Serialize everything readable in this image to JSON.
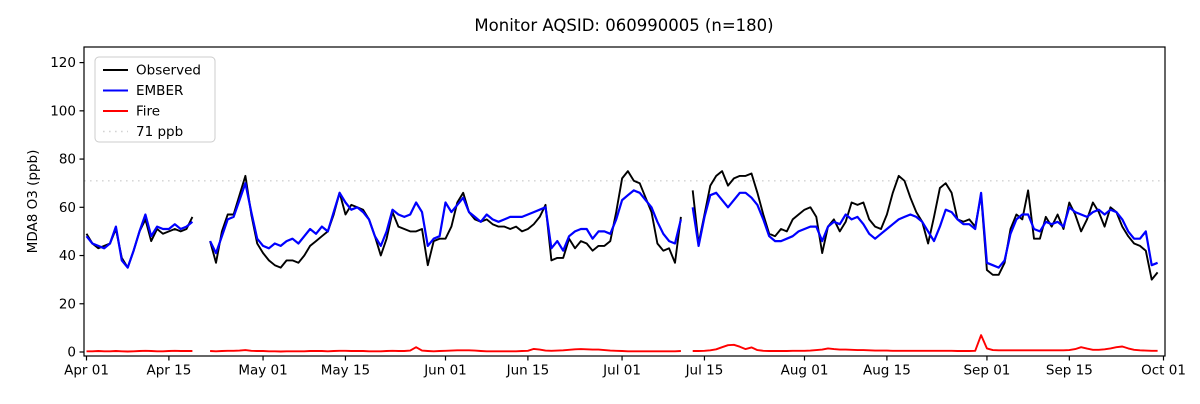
{
  "chart_data": {
    "type": "line",
    "title": "Monitor AQSID: 060990005 (n=180)",
    "xlabel": "",
    "ylabel": "MDA8 O3 (ppb)",
    "grid": false,
    "legend_position": "upper left",
    "ylim": [
      -2,
      126.5
    ],
    "yticks": [
      0,
      20,
      40,
      60,
      80,
      100,
      120
    ],
    "xticks": [
      {
        "label": "Apr 01",
        "day": 0
      },
      {
        "label": "Apr 15",
        "day": 14
      },
      {
        "label": "May 01",
        "day": 30
      },
      {
        "label": "May 15",
        "day": 44
      },
      {
        "label": "Jun 01",
        "day": 61
      },
      {
        "label": "Jun 15",
        "day": 75
      },
      {
        "label": "Jul 01",
        "day": 91
      },
      {
        "label": "Jul 15",
        "day": 105
      },
      {
        "label": "Aug 01",
        "day": 122
      },
      {
        "label": "Aug 15",
        "day": 136
      },
      {
        "label": "Sep 01",
        "day": 153
      },
      {
        "label": "Sep 15",
        "day": 167
      },
      {
        "label": "Oct 01",
        "day": 183
      }
    ],
    "n_days": 183,
    "date_range": "Apr 01 - Sep 30",
    "missing_days": [
      "Apr 20",
      "Apr 21",
      "Jul 12"
    ],
    "threshold": {
      "label": "71 ppb",
      "value": 71,
      "color": "#d3d3d3",
      "style": "dotted"
    },
    "legend_items": [
      {
        "label": "Observed",
        "color": "#000000",
        "dash": "solid"
      },
      {
        "label": "EMBER",
        "color": "#0000ff",
        "dash": "solid"
      },
      {
        "label": "Fire",
        "color": "#ff0000",
        "dash": "solid"
      },
      {
        "label": "71 ppb",
        "color": "#d3d3d3",
        "dash": "dotted"
      }
    ],
    "series": [
      {
        "name": "Observed",
        "color": "#000000",
        "width": 1.9,
        "values": [
          49,
          45,
          43,
          44,
          45,
          51,
          39,
          35,
          42,
          50,
          55,
          46,
          51,
          49,
          50,
          51,
          50,
          51,
          56,
          null,
          null,
          46,
          37,
          50,
          57,
          57,
          65,
          73,
          57,
          45,
          41,
          38,
          36,
          35,
          38,
          38,
          37,
          40,
          44,
          46,
          48,
          50,
          57,
          66,
          57,
          61,
          60,
          59,
          55,
          48,
          40,
          47,
          58,
          52,
          51,
          50,
          50,
          51,
          36,
          46,
          47,
          47,
          52,
          62,
          66,
          58,
          55,
          54,
          55,
          53,
          52,
          52,
          51,
          52,
          50,
          51,
          53,
          56,
          61,
          38,
          39,
          39,
          47,
          43,
          46,
          45,
          42,
          44,
          44,
          46,
          58,
          72,
          75,
          71,
          70,
          64,
          58,
          45,
          42,
          43,
          37,
          56,
          null,
          67,
          45,
          57,
          69,
          73,
          75,
          69,
          72,
          73,
          73,
          74,
          66,
          57,
          49,
          48,
          51,
          50,
          55,
          57,
          59,
          60,
          56,
          41,
          52,
          55,
          50,
          54,
          62,
          61,
          62,
          55,
          52,
          51,
          57,
          66,
          73,
          71,
          64,
          58,
          54,
          45,
          56,
          68,
          70,
          66,
          55,
          54,
          55,
          52,
          65,
          34,
          32,
          32,
          37,
          51,
          57,
          55,
          67,
          47,
          47,
          56,
          52,
          57,
          51,
          62,
          57,
          50,
          55,
          62,
          58,
          52,
          60,
          58,
          52,
          48,
          45,
          44,
          42,
          30,
          33
        ]
      },
      {
        "name": "EMBER",
        "color": "#0000ff",
        "width": 2.2,
        "values": [
          48,
          45,
          44,
          43,
          45,
          52,
          38,
          35,
          42,
          50,
          57,
          48,
          52,
          51,
          51,
          53,
          51,
          52,
          54,
          null,
          null,
          46,
          41,
          48,
          55,
          56,
          63,
          70,
          58,
          47,
          44,
          43,
          45,
          44,
          46,
          47,
          45,
          48,
          51,
          49,
          52,
          50,
          58,
          66,
          62,
          59,
          60,
          58,
          55,
          48,
          44,
          50,
          59,
          57,
          56,
          57,
          62,
          58,
          44,
          47,
          48,
          62,
          58,
          61,
          64,
          58,
          56,
          54,
          57,
          55,
          54,
          55,
          56,
          56,
          56,
          57,
          58,
          59,
          60,
          43,
          46,
          42,
          48,
          50,
          51,
          51,
          47,
          50,
          50,
          49,
          55,
          63,
          65,
          67,
          66,
          63,
          60,
          54,
          49,
          46,
          45,
          55,
          null,
          60,
          44,
          56,
          65,
          66,
          63,
          60,
          63,
          66,
          66,
          64,
          61,
          55,
          48,
          46,
          46,
          47,
          48,
          50,
          51,
          52,
          52,
          46,
          52,
          54,
          53,
          57,
          55,
          56,
          53,
          49,
          47,
          49,
          51,
          53,
          55,
          56,
          57,
          56,
          54,
          50,
          46,
          52,
          59,
          58,
          55,
          53,
          53,
          51,
          66,
          37,
          36,
          35,
          38,
          49,
          55,
          57,
          57,
          51,
          50,
          54,
          53,
          54,
          52,
          60,
          58,
          57,
          56,
          58,
          59,
          57,
          59,
          58,
          55,
          50,
          47,
          47,
          50,
          36,
          37
        ]
      },
      {
        "name": "Fire",
        "color": "#ff0000",
        "width": 1.9,
        "values": [
          0.3,
          0.3,
          0.4,
          0.3,
          0.3,
          0.4,
          0.3,
          0.2,
          0.3,
          0.4,
          0.5,
          0.4,
          0.3,
          0.3,
          0.4,
          0.5,
          0.4,
          0.4,
          0.4,
          null,
          null,
          0.4,
          0.3,
          0.4,
          0.5,
          0.5,
          0.6,
          0.8,
          0.5,
          0.4,
          0.4,
          0.3,
          0.3,
          0.2,
          0.3,
          0.3,
          0.3,
          0.3,
          0.4,
          0.4,
          0.4,
          0.3,
          0.4,
          0.5,
          0.5,
          0.4,
          0.4,
          0.4,
          0.3,
          0.3,
          0.3,
          0.4,
          0.5,
          0.4,
          0.4,
          0.6,
          2.0,
          0.6,
          0.4,
          0.3,
          0.4,
          0.5,
          0.6,
          0.7,
          0.7,
          0.7,
          0.6,
          0.4,
          0.3,
          0.3,
          0.3,
          0.3,
          0.3,
          0.3,
          0.4,
          0.5,
          1.3,
          1.0,
          0.6,
          0.5,
          0.6,
          0.7,
          0.9,
          1.1,
          1.2,
          1.1,
          1.0,
          1.0,
          0.8,
          0.6,
          0.5,
          0.4,
          0.3,
          0.3,
          0.3,
          0.3,
          0.3,
          0.3,
          0.3,
          0.3,
          0.3,
          0.4,
          null,
          0.4,
          0.4,
          0.5,
          0.7,
          1.1,
          2.0,
          2.8,
          3.0,
          2.2,
          1.2,
          1.9,
          0.8,
          0.5,
          0.4,
          0.4,
          0.4,
          0.4,
          0.5,
          0.5,
          0.5,
          0.6,
          0.8,
          1.0,
          1.5,
          1.2,
          1.0,
          1.0,
          0.9,
          0.8,
          0.8,
          0.7,
          0.6,
          0.6,
          0.6,
          0.5,
          0.5,
          0.5,
          0.5,
          0.5,
          0.5,
          0.5,
          0.5,
          0.5,
          0.5,
          0.5,
          0.4,
          0.4,
          0.4,
          0.5,
          7.0,
          1.5,
          0.8,
          0.7,
          0.7,
          0.7,
          0.7,
          0.7,
          0.7,
          0.7,
          0.7,
          0.7,
          0.7,
          0.7,
          0.7,
          0.8,
          1.2,
          2.0,
          1.4,
          0.9,
          0.9,
          1.1,
          1.5,
          2.0,
          2.3,
          1.5,
          0.9,
          0.7,
          0.6,
          0.5,
          0.5
        ]
      }
    ]
  }
}
